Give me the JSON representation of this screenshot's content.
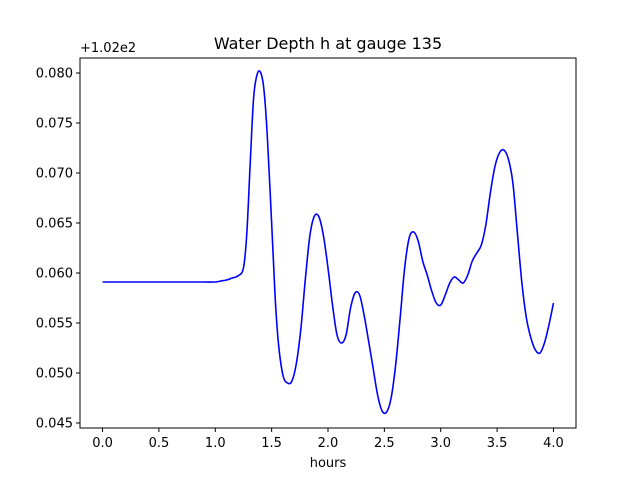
{
  "chart_data": {
    "type": "line",
    "title": "Water Depth h at gauge 135",
    "xlabel": "hours",
    "ylabel": "",
    "y_offset_label": "+1.02e2",
    "xlim": [
      -0.2,
      4.2
    ],
    "ylim": [
      0.0445,
      0.0815
    ],
    "x_ticks": [
      0.0,
      0.5,
      1.0,
      1.5,
      2.0,
      2.5,
      3.0,
      3.5,
      4.0
    ],
    "x_tick_labels": [
      "0.0",
      "0.5",
      "1.0",
      "1.5",
      "2.0",
      "2.5",
      "3.0",
      "3.5",
      "4.0"
    ],
    "y_ticks": [
      0.045,
      0.05,
      0.055,
      0.06,
      0.065,
      0.07,
      0.075,
      0.08
    ],
    "y_tick_labels": [
      "0.045",
      "0.050",
      "0.055",
      "0.060",
      "0.065",
      "0.070",
      "0.075",
      "0.080"
    ],
    "grid": false,
    "series": [
      {
        "color": "#0000ff",
        "x": [
          0.0,
          0.2,
          0.4,
          0.6,
          0.8,
          0.9,
          1.0,
          1.05,
          1.1,
          1.15,
          1.2,
          1.25,
          1.28,
          1.31,
          1.34,
          1.37,
          1.4,
          1.43,
          1.46,
          1.5,
          1.53,
          1.56,
          1.6,
          1.64,
          1.68,
          1.72,
          1.76,
          1.8,
          1.84,
          1.88,
          1.92,
          1.96,
          2.0,
          2.04,
          2.08,
          2.12,
          2.16,
          2.2,
          2.24,
          2.28,
          2.32,
          2.36,
          2.4,
          2.44,
          2.48,
          2.52,
          2.56,
          2.6,
          2.64,
          2.68,
          2.72,
          2.76,
          2.8,
          2.84,
          2.88,
          2.92,
          2.96,
          3.0,
          3.04,
          3.08,
          3.12,
          3.16,
          3.2,
          3.24,
          3.28,
          3.32,
          3.36,
          3.4,
          3.44,
          3.48,
          3.52,
          3.56,
          3.6,
          3.64,
          3.68,
          3.72,
          3.76,
          3.8,
          3.84,
          3.88,
          3.92,
          3.96,
          4.0
        ],
        "values": [
          0.0591,
          0.0591,
          0.0591,
          0.0591,
          0.0591,
          0.0591,
          0.0591,
          0.0592,
          0.0593,
          0.0595,
          0.0597,
          0.0605,
          0.064,
          0.071,
          0.0775,
          0.0798,
          0.0801,
          0.0785,
          0.074,
          0.065,
          0.0578,
          0.053,
          0.0498,
          0.049,
          0.0492,
          0.051,
          0.0545,
          0.0595,
          0.0638,
          0.0657,
          0.0656,
          0.0637,
          0.0605,
          0.0568,
          0.0538,
          0.053,
          0.0538,
          0.0565,
          0.058,
          0.0578,
          0.0558,
          0.0532,
          0.0505,
          0.0478,
          0.0462,
          0.0461,
          0.0475,
          0.0508,
          0.0555,
          0.0605,
          0.0635,
          0.0641,
          0.0632,
          0.0612,
          0.0598,
          0.0582,
          0.057,
          0.0568,
          0.0578,
          0.059,
          0.0596,
          0.0593,
          0.059,
          0.0598,
          0.0612,
          0.062,
          0.0628,
          0.0648,
          0.068,
          0.0706,
          0.072,
          0.0723,
          0.0714,
          0.069,
          0.064,
          0.059,
          0.0555,
          0.0535,
          0.0523,
          0.052,
          0.053,
          0.0548,
          0.057
        ]
      }
    ]
  }
}
